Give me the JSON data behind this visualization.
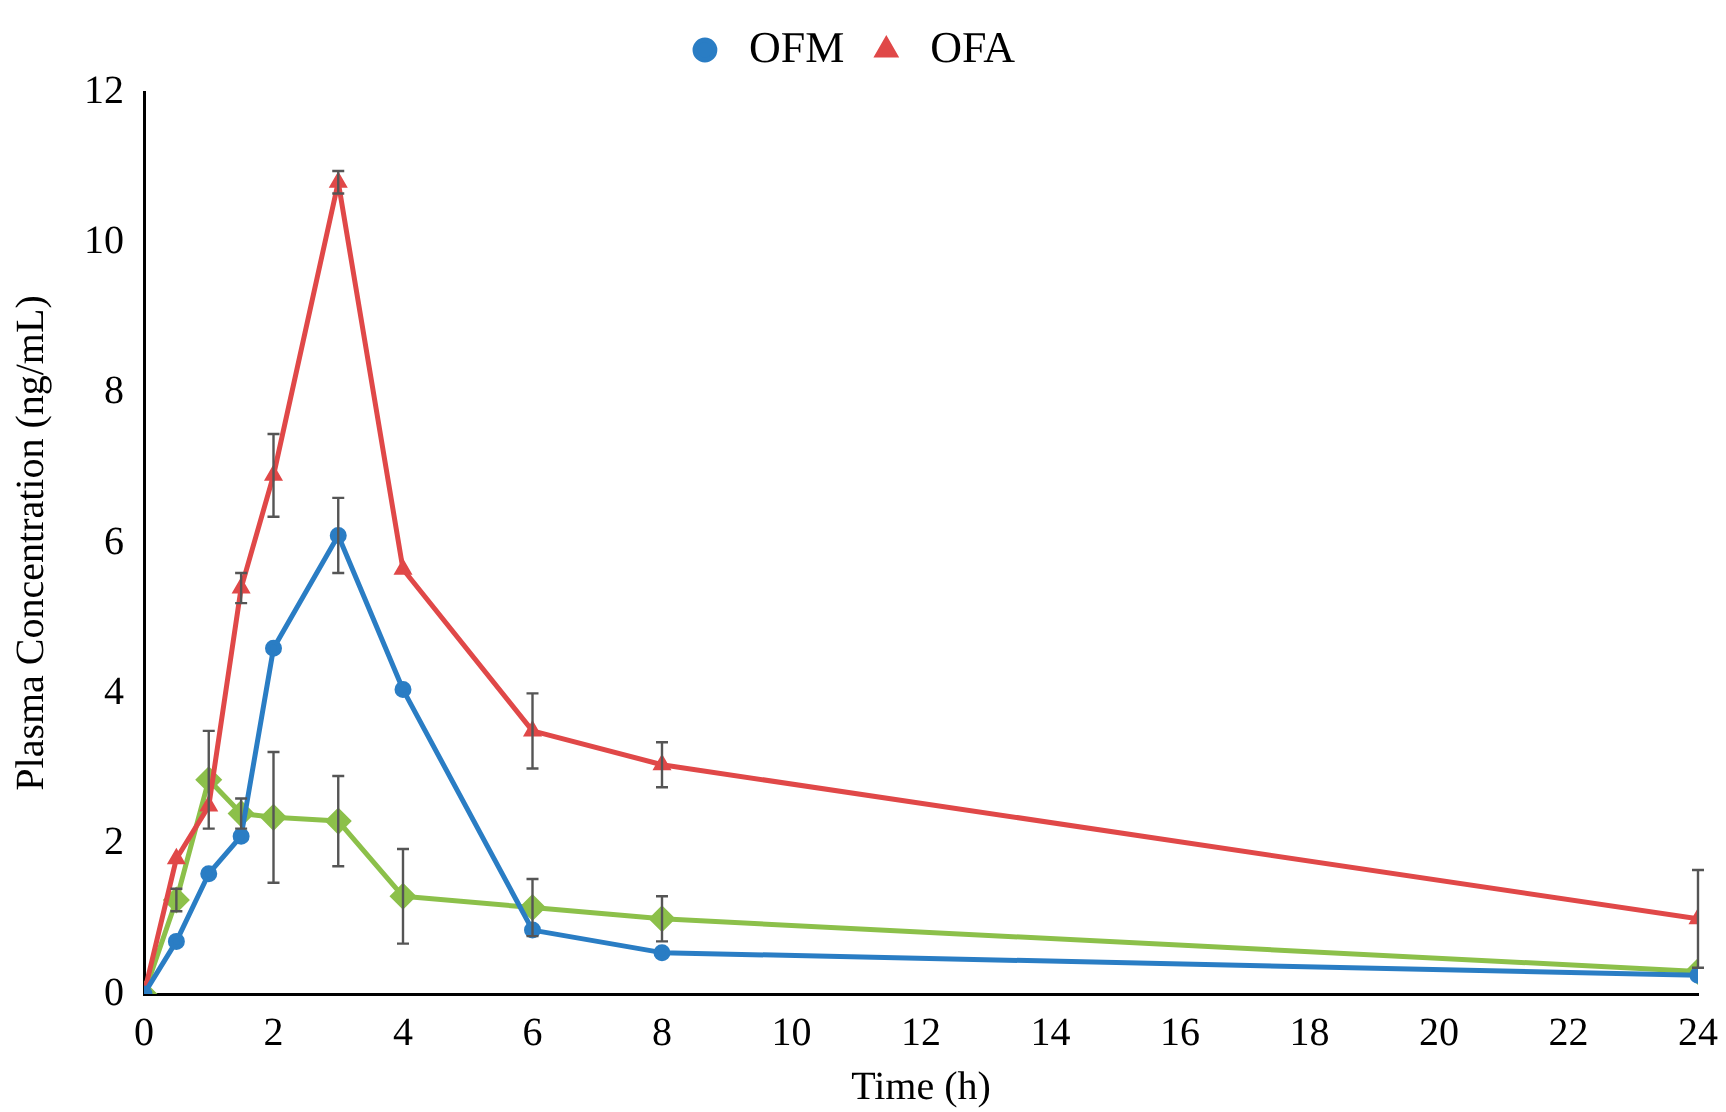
{
  "chart_data": {
    "type": "line",
    "xlabel": "Time (h)",
    "ylabel": "Plasma Concentration (ng/mL)",
    "x": [
      0,
      0.5,
      1,
      1.5,
      2,
      3,
      4,
      6,
      8,
      24
    ],
    "xlim": [
      0,
      24
    ],
    "xticks": [
      0,
      2,
      4,
      6,
      8,
      10,
      12,
      14,
      16,
      18,
      20,
      22,
      24
    ],
    "ylim": [
      0,
      12
    ],
    "yticks": [
      0,
      2,
      4,
      6,
      8,
      10,
      12
    ],
    "grid": false,
    "legend": "top",
    "line_style": "solid",
    "series": [
      {
        "name": "OFM",
        "color": "#2a7dc4",
        "marker": "circle",
        "values": [
          0,
          0.7,
          1.6,
          2.1,
          4.6,
          6.1,
          4.05,
          0.85,
          0.55,
          0.25
        ],
        "errors": [
          null,
          null,
          null,
          null,
          null,
          0.5,
          null,
          null,
          null,
          null
        ]
      },
      {
        "name": "OFA",
        "color": "#e04848",
        "marker": "triangle",
        "values": [
          0,
          1.8,
          2.5,
          5.4,
          6.9,
          10.8,
          5.65,
          3.5,
          3.05,
          1.0
        ],
        "errors": [
          null,
          null,
          null,
          0.2,
          0.55,
          0.15,
          null,
          0.5,
          0.3,
          0.65
        ]
      },
      {
        "color": "#8cc04a",
        "marker": "diamond",
        "values": [
          0,
          1.25,
          2.85,
          2.4,
          2.35,
          2.3,
          1.3,
          1.15,
          1.0,
          0.3
        ],
        "errors": [
          null,
          0.15,
          0.65,
          0.2,
          0.87,
          0.6,
          0.63,
          0.38,
          0.3,
          null
        ]
      }
    ]
  }
}
